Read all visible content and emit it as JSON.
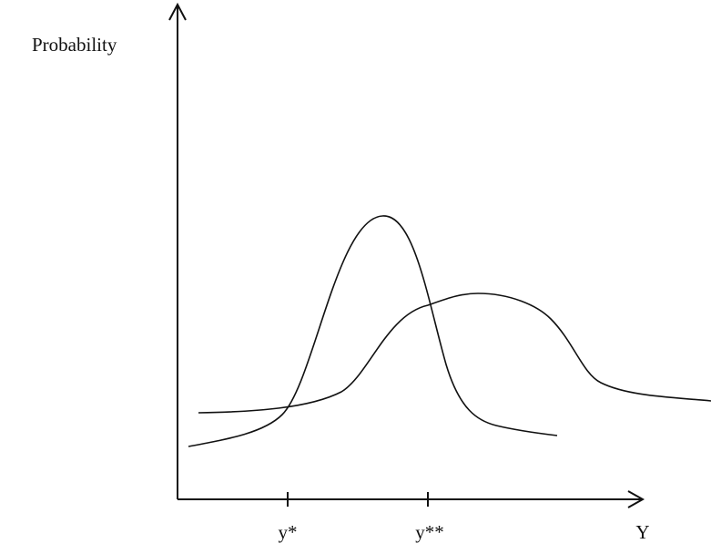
{
  "axes": {
    "y_label": "Probability",
    "x_label": "Y",
    "ticks": [
      "y*",
      "y**"
    ]
  }
}
